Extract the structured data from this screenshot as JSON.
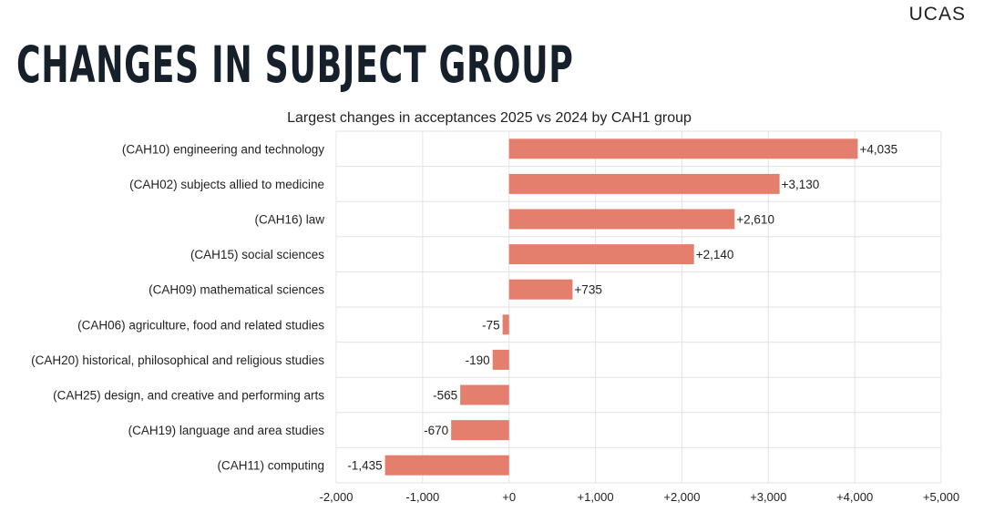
{
  "brand": {
    "logo_text": "UCAS"
  },
  "headline": "CHANGES IN SUBJECT GROUP",
  "colors": {
    "bar": "#E57F6D",
    "grid": "#E3E3E3",
    "text": "#222222",
    "headline": "#15202B"
  },
  "chart_data": {
    "type": "bar",
    "orientation": "horizontal",
    "title": "Largest changes in acceptances 2025 vs 2024 by CAH1 group",
    "xlabel": "",
    "ylabel": "",
    "xlim": [
      -2000,
      5000
    ],
    "x_ticks": [
      -2000,
      -1000,
      0,
      1000,
      2000,
      3000,
      4000,
      5000
    ],
    "x_tick_labels": [
      "-2,000",
      "-1,000",
      "+0",
      "+1,000",
      "+2,000",
      "+3,000",
      "+4,000",
      "+5,000"
    ],
    "grid": true,
    "categories": [
      "(CAH10) engineering and technology",
      "(CAH02) subjects allied to medicine",
      "(CAH16) law",
      "(CAH15) social sciences",
      "(CAH09) mathematical sciences",
      "(CAH06) agriculture, food and related studies",
      "(CAH20) historical, philosophical and religious studies",
      "(CAH25) design, and creative and performing arts",
      "(CAH19) language and area studies",
      "(CAH11) computing"
    ],
    "values": [
      4035,
      3130,
      2610,
      2140,
      735,
      -75,
      -190,
      -565,
      -670,
      -1435
    ],
    "data_labels": [
      "+4,035",
      "+3,130",
      "+2,610",
      "+2,140",
      "+735",
      "-75",
      "-190",
      "-565",
      "-670",
      "-1,435"
    ]
  }
}
